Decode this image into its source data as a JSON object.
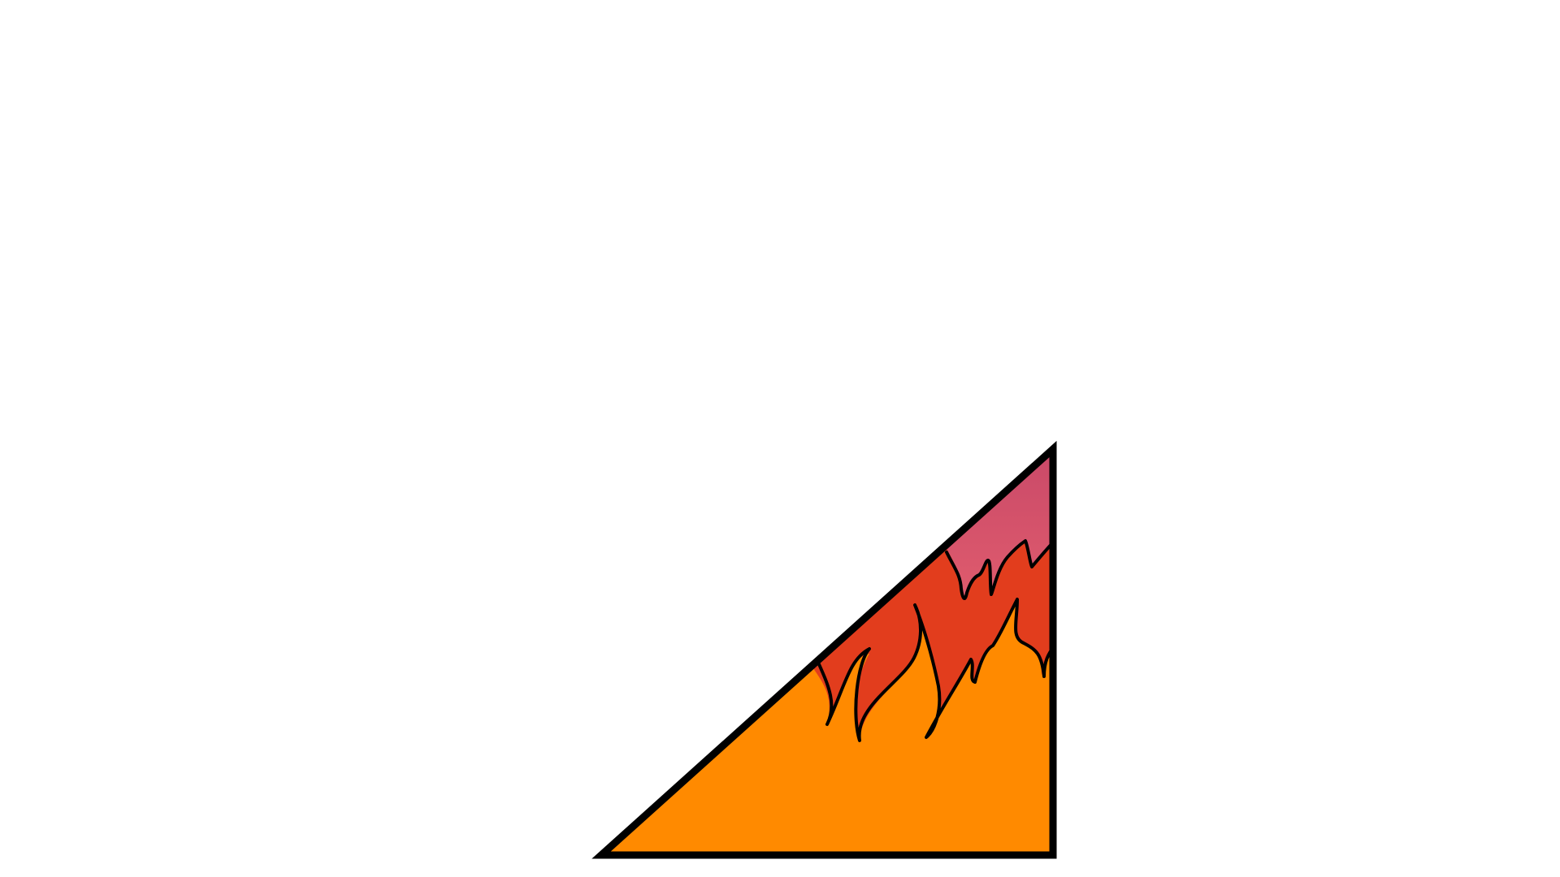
{
  "illustration": {
    "subject": "flaming-triangle",
    "colors": {
      "outline": "#000000",
      "background": "#ffffff",
      "base_fill": "#ff8a00",
      "middle_flame": "#e23d1d",
      "top_flame_start": "#df5b6d",
      "top_flame_end": "#c84868"
    }
  }
}
